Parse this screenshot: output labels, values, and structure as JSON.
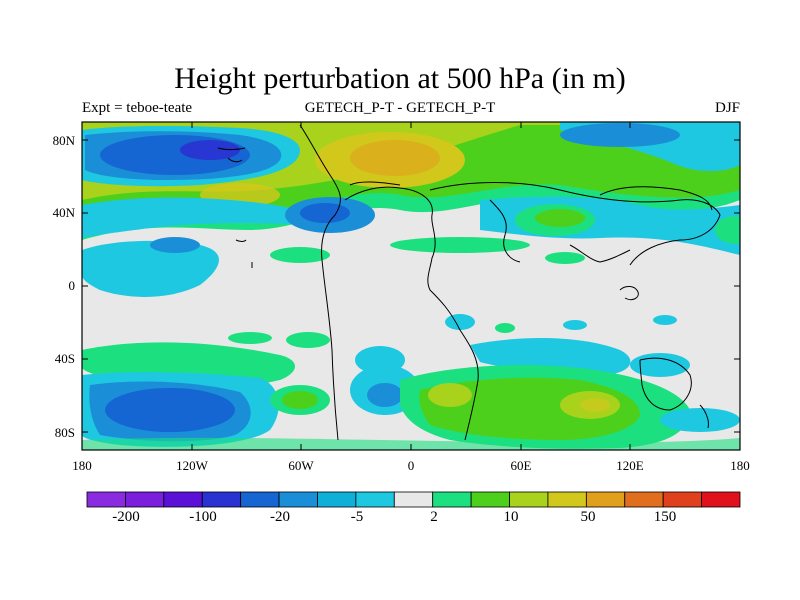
{
  "title": "Height perturbation at 500 hPa (in m)",
  "subtitle_left": "Expt = teboe-teate",
  "subtitle_center": "GETECH_P-T - GETECH_P-T",
  "subtitle_right": "DJF",
  "lat_labels": [
    "80N",
    "40N",
    "0",
    "40S",
    "80S"
  ],
  "lon_labels": [
    "180",
    "120W",
    "60W",
    "0",
    "60E",
    "120E",
    "180"
  ],
  "colorbar": {
    "colors": [
      "#8a2be2",
      "#7a1fdc",
      "#5a10d6",
      "#2a32d2",
      "#1565d2",
      "#1a8fd8",
      "#0fb0d8",
      "#1ec8e0",
      "#e8e8e8",
      "#1ce080",
      "#4cd01c",
      "#a8d21c",
      "#d2c81c",
      "#e0a01c",
      "#e06e1c",
      "#e0401c",
      "#e0101c"
    ],
    "labels": [
      "-200",
      "-100",
      "-20",
      "-5",
      "2",
      "10",
      "50",
      "150"
    ]
  }
}
